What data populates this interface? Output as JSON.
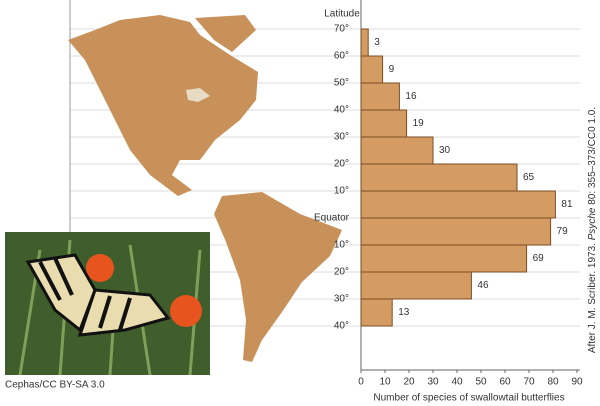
{
  "chart_data": {
    "type": "bar",
    "ylabel": "Latitude",
    "latitude_labels": [
      "70°",
      "60°",
      "50°",
      "40°",
      "30°",
      "20°",
      "10°",
      "Equator",
      "10°",
      "20°",
      "30°",
      "40°"
    ],
    "values": [
      3,
      9,
      16,
      19,
      30,
      65,
      81,
      79,
      69,
      46,
      13
    ],
    "color": "#d49c62",
    "xlim": [
      0,
      90
    ],
    "xticks": [
      0,
      10,
      20,
      30,
      40,
      50,
      60,
      70,
      80,
      90
    ],
    "xlabel": "Number of species of swallowtail butterflies",
    "photo_credit": "Cephas/CC BY-SA 3.0",
    "source": [
      "After J. M. Scriber. 1973. ",
      "Psyche",
      " 80: 355–373/CC0 1.0."
    ]
  }
}
